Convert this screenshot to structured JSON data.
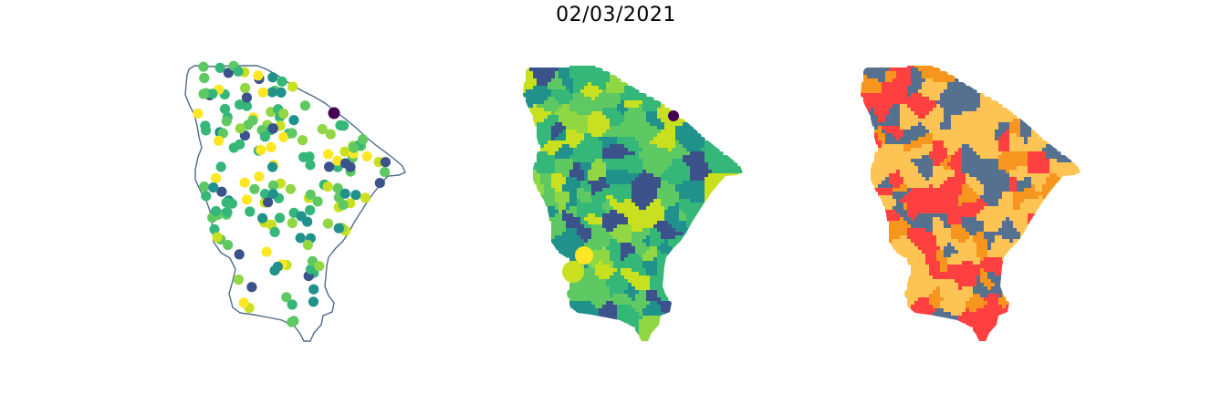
{
  "figure": {
    "title": "02/03/2021"
  },
  "colors": {
    "outline": "#4f6a8a",
    "viridis": [
      "#440154",
      "#3b528b",
      "#21918c",
      "#35b779",
      "#5ec962",
      "#90d743",
      "#c8e020",
      "#fde725"
    ],
    "categories": [
      "#ff4040",
      "#fdc453",
      "#56718f",
      "#f7961f"
    ]
  },
  "panels": [
    {
      "kind": "points",
      "description_label": ""
    },
    {
      "kind": "choropleth-continuous",
      "description_label": ""
    },
    {
      "kind": "choropleth-categorical",
      "description_label": ""
    }
  ]
}
